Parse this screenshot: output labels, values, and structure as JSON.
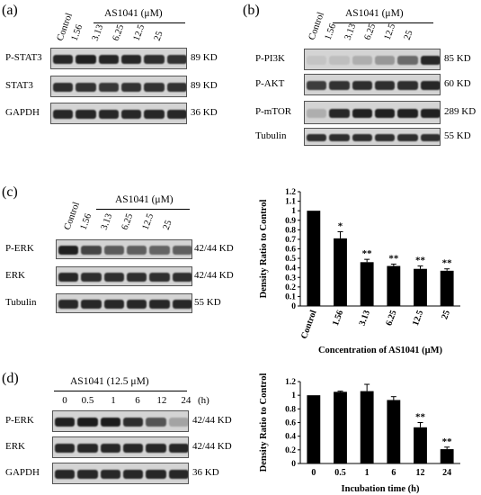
{
  "panels": {
    "a": {
      "label": "(a)",
      "treatment": "AS1041 (μM)",
      "lanes": [
        "Control",
        "1.56",
        "3.13",
        "6.25",
        "12.5",
        "25"
      ],
      "rows": [
        {
          "name": "P-STAT3",
          "kd": "89 KD"
        },
        {
          "name": "STAT3",
          "kd": "89 KD"
        },
        {
          "name": "GAPDH",
          "kd": "36 KD"
        }
      ]
    },
    "b": {
      "label": "(b)",
      "treatment": "AS1041 (μM)",
      "lanes": [
        "Control",
        "1.56",
        "3.13",
        "6.25",
        "12.5",
        "25"
      ],
      "rows": [
        {
          "name": "P-PI3K",
          "kd": "85 KD"
        },
        {
          "name": "P-AKT",
          "kd": "60 KD"
        },
        {
          "name": "P-mTOR",
          "kd": "289 KD"
        },
        {
          "name": "Tubulin",
          "kd": "55 KD"
        }
      ]
    },
    "c": {
      "label": "(c)",
      "treatment": "AS1041 (μM)",
      "lanes": [
        "Control",
        "1.56",
        "3.13",
        "6.25",
        "12.5",
        "25"
      ],
      "rows": [
        {
          "name": "P-ERK",
          "kd": "42/44 KD"
        },
        {
          "name": "ERK",
          "kd": "42/44 KD"
        },
        {
          "name": "Tubulin",
          "kd": "55 KD"
        }
      ]
    },
    "d": {
      "label": "(d)",
      "treatment": "AS1041 (12.5 μM)",
      "lanes": [
        "0",
        "0.5",
        "1",
        "6",
        "12",
        "24"
      ],
      "unit": "(h)",
      "rows": [
        {
          "name": "P-ERK",
          "kd": "42/44 KD"
        },
        {
          "name": "ERK",
          "kd": "42/44 KD"
        },
        {
          "name": "GAPDH",
          "kd": "36 KD"
        }
      ]
    }
  },
  "chart_data": [
    {
      "type": "bar",
      "categories": [
        "Control",
        "1.56",
        "3.13",
        "6.25",
        "12.5",
        "25"
      ],
      "values": [
        1.0,
        0.71,
        0.46,
        0.42,
        0.39,
        0.37
      ],
      "errors": [
        0,
        0.07,
        0.03,
        0.02,
        0.03,
        0.02
      ],
      "significance": [
        "",
        "*",
        "**",
        "**",
        "**",
        "**"
      ],
      "title": "",
      "xlabel": "Concentration of AS1041 (μM)",
      "ylabel": "Density Ratio to Control",
      "ylim": [
        0,
        1.2
      ],
      "yticks": [
        "0",
        "0.1",
        "0.2",
        "0.3",
        "0.4",
        "0.5",
        "0.6",
        "0.7",
        "0.8",
        "0.9",
        "1",
        "1.1",
        "1.2"
      ],
      "xtick_rotation": "rotated"
    },
    {
      "type": "bar",
      "categories": [
        "0",
        "0.5",
        "1",
        "6",
        "12",
        "24"
      ],
      "values": [
        1.0,
        1.05,
        1.06,
        0.93,
        0.53,
        0.21
      ],
      "errors": [
        0,
        0.01,
        0.1,
        0.05,
        0.07,
        0.03
      ],
      "significance": [
        "",
        "",
        "",
        "",
        "**",
        "**"
      ],
      "title": "",
      "xlabel": "Incubation time (h)",
      "ylabel": "Density Ratio to Control",
      "ylim": [
        0,
        1.2
      ],
      "yticks": [
        "0",
        "0.2",
        "0.4",
        "0.6",
        "0.8",
        "1",
        "1.2"
      ]
    }
  ]
}
